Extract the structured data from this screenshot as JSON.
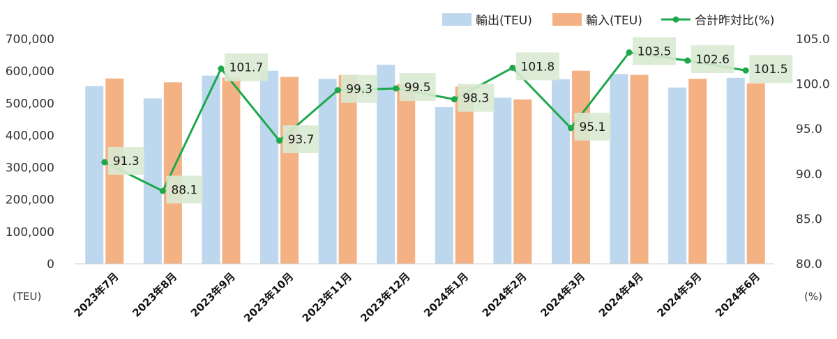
{
  "chart_data": {
    "type": "bar",
    "categories": [
      "2023年7月",
      "2023年8月",
      "2023年9月",
      "2023年10月",
      "2023年11月",
      "2023年12月",
      "2024年1月",
      "2024年2月",
      "2024年3月",
      "2024年4月",
      "2024年5月",
      "2024年6月"
    ],
    "series": [
      {
        "name": "輸出(TEU)",
        "type": "bar",
        "axis": "left",
        "color": "#bdd7ee",
        "values": [
          553000,
          515000,
          586000,
          601000,
          576000,
          620000,
          488000,
          517000,
          575000,
          591000,
          549000,
          579000
        ]
      },
      {
        "name": "輸入(TEU)",
        "type": "bar",
        "axis": "left",
        "color": "#f4b183",
        "values": [
          577000,
          565000,
          580000,
          582000,
          588000,
          560000,
          552000,
          512000,
          601000,
          588000,
          576000,
          562000
        ]
      },
      {
        "name": "合計昨対比(%)",
        "type": "line",
        "axis": "right",
        "color": "#1ea84b",
        "values": [
          91.3,
          88.1,
          101.7,
          93.7,
          99.3,
          99.5,
          98.3,
          101.8,
          95.1,
          103.5,
          102.6,
          101.5
        ],
        "labels": [
          "91.3",
          "88.1",
          "101.7",
          "93.7",
          "99.3",
          "99.5",
          "98.3",
          "101.8",
          "95.1",
          "103.5",
          "102.6",
          "101.5"
        ]
      }
    ],
    "y_left": {
      "min": 0,
      "max": 700000,
      "ticks": [
        "0",
        "100,000",
        "200,000",
        "300,000",
        "400,000",
        "500,000",
        "600,000",
        "700,000"
      ],
      "unit": "(TEU)"
    },
    "y_right": {
      "min": 80,
      "max": 105,
      "ticks": [
        "80.0",
        "85.0",
        "90.0",
        "95.0",
        "100.0",
        "105.0"
      ],
      "unit": "(%)"
    },
    "legend_position": "top-right",
    "label_box_color": "#d9ead3",
    "grid": false
  }
}
